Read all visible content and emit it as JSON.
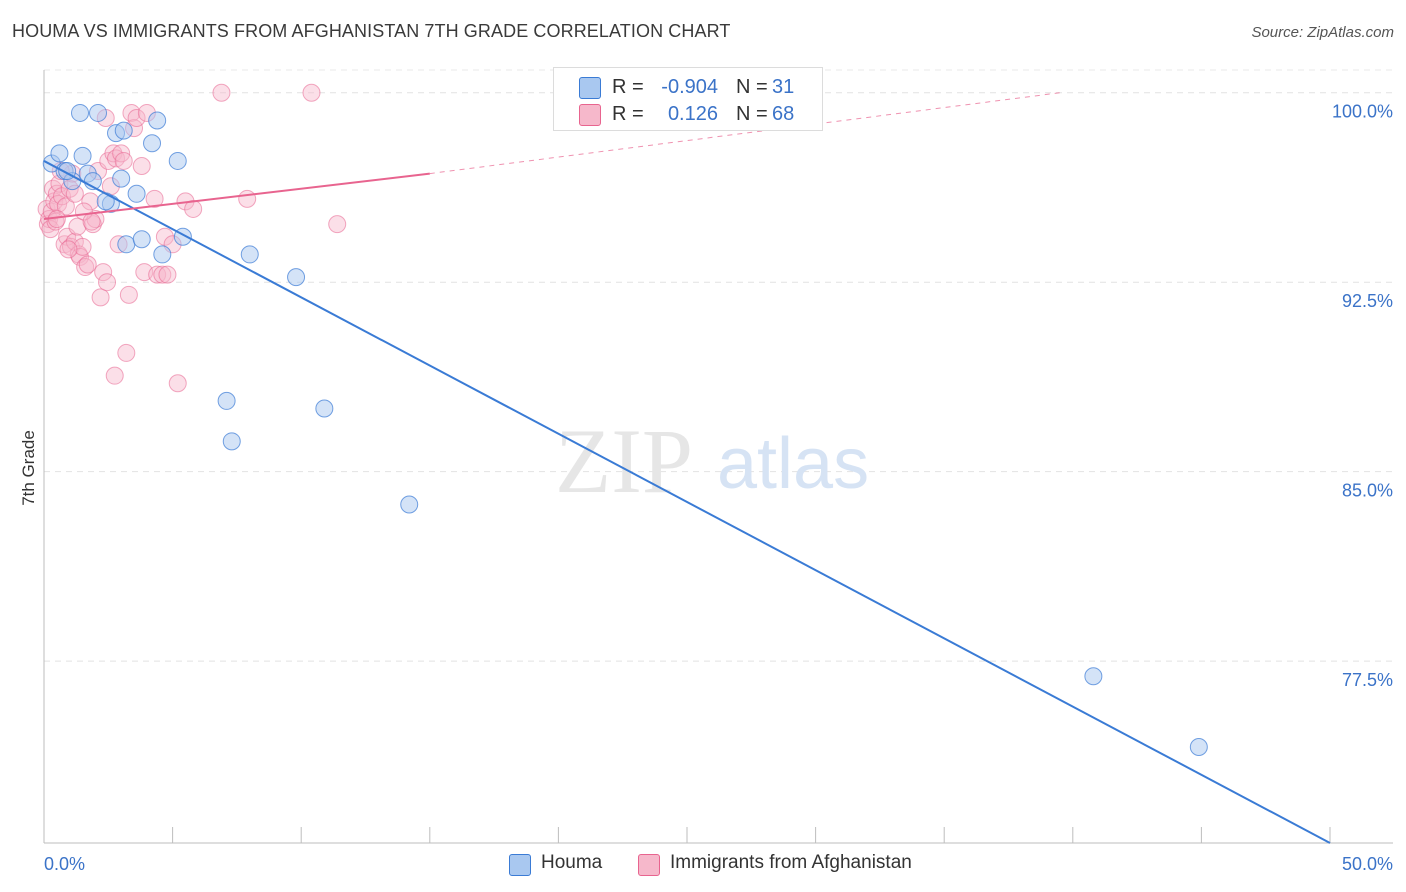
{
  "header": {
    "title": "HOUMA VS IMMIGRANTS FROM AFGHANISTAN 7TH GRADE CORRELATION CHART",
    "source": "Source: ZipAtlas.com"
  },
  "watermark": {
    "zip": "ZIP",
    "atlas": "atlas"
  },
  "legend_stats": {
    "houma": {
      "r_label": "R =",
      "r_value": "-0.904",
      "n_label": "N =",
      "n_value": "31"
    },
    "afghan": {
      "r_label": "R =",
      "r_value": "0.126",
      "n_label": "N =",
      "n_value": "68"
    }
  },
  "chart_data": {
    "type": "scatter",
    "title": "HOUMA VS IMMIGRANTS FROM AFGHANISTAN 7TH GRADE CORRELATION CHART",
    "xlabel": "",
    "ylabel": "7th Grade",
    "xlim": [
      0,
      50
    ],
    "ylim": [
      70.3,
      100.9
    ],
    "x_tick_labels": [
      "0.0%",
      "50.0%"
    ],
    "y_ticks": [
      77.5,
      85.0,
      92.5,
      100.0
    ],
    "y_tick_labels": [
      "77.5%",
      "85.0%",
      "92.5%",
      "100.0%"
    ],
    "grid": true,
    "legend_position": "bottom",
    "colors": {
      "houma": "#3a7bd5",
      "houma_fill": "#a9c8f0",
      "afghan": "#e8648f",
      "afghan_fill": "#f6b8cb"
    },
    "series": [
      {
        "name": "Houma",
        "r": -0.904,
        "n": 31,
        "trend": {
          "x0": 0.0,
          "y0": 97.3,
          "x1": 50.0,
          "y1": 70.3
        },
        "points": [
          [
            0.3,
            97.2
          ],
          [
            0.6,
            97.6
          ],
          [
            0.8,
            96.9
          ],
          [
            1.1,
            96.5
          ],
          [
            1.4,
            99.2
          ],
          [
            1.5,
            97.5
          ],
          [
            1.7,
            96.8
          ],
          [
            1.9,
            96.5
          ],
          [
            2.1,
            99.2
          ],
          [
            2.6,
            95.6
          ],
          [
            2.8,
            98.4
          ],
          [
            3.0,
            96.6
          ],
          [
            3.1,
            98.5
          ],
          [
            3.2,
            94.0
          ],
          [
            3.6,
            96.0
          ],
          [
            3.8,
            94.2
          ],
          [
            4.2,
            98.0
          ],
          [
            4.4,
            98.9
          ],
          [
            4.6,
            93.6
          ],
          [
            5.2,
            97.3
          ],
          [
            5.4,
            94.3
          ],
          [
            7.1,
            87.8
          ],
          [
            7.3,
            86.2
          ],
          [
            8.0,
            93.6
          ],
          [
            9.8,
            92.7
          ],
          [
            10.9,
            87.5
          ],
          [
            14.2,
            83.7
          ],
          [
            40.8,
            76.9
          ],
          [
            44.9,
            74.1
          ],
          [
            0.9,
            96.9
          ],
          [
            2.4,
            95.7
          ]
        ]
      },
      {
        "name": "Immigrants from Afghanistan",
        "r": 0.126,
        "n": 68,
        "trend": {
          "x0": 0.0,
          "y0": 95.0,
          "x1": 15.0,
          "y1": 96.8,
          "dash_to_x": 39.5,
          "dash_to_y": 100.0
        },
        "points": [
          [
            0.1,
            95.4
          ],
          [
            0.15,
            94.8
          ],
          [
            0.2,
            95.0
          ],
          [
            0.25,
            94.6
          ],
          [
            0.3,
            95.3
          ],
          [
            0.35,
            96.2
          ],
          [
            0.4,
            95.7
          ],
          [
            0.45,
            94.9
          ],
          [
            0.5,
            96.0
          ],
          [
            0.55,
            95.6
          ],
          [
            0.6,
            96.4
          ],
          [
            0.7,
            95.9
          ],
          [
            0.8,
            94.0
          ],
          [
            0.85,
            95.5
          ],
          [
            0.9,
            94.3
          ],
          [
            1.0,
            96.2
          ],
          [
            1.05,
            93.9
          ],
          [
            1.1,
            96.8
          ],
          [
            1.2,
            94.1
          ],
          [
            1.3,
            94.7
          ],
          [
            1.35,
            93.6
          ],
          [
            1.4,
            93.5
          ],
          [
            1.5,
            93.9
          ],
          [
            1.6,
            93.1
          ],
          [
            1.7,
            93.2
          ],
          [
            1.8,
            95.7
          ],
          [
            1.9,
            94.8
          ],
          [
            2.0,
            95.0
          ],
          [
            2.1,
            96.9
          ],
          [
            2.2,
            91.9
          ],
          [
            2.3,
            92.9
          ],
          [
            2.4,
            99.0
          ],
          [
            2.45,
            92.5
          ],
          [
            2.5,
            97.3
          ],
          [
            2.6,
            96.3
          ],
          [
            2.7,
            97.6
          ],
          [
            2.8,
            97.4
          ],
          [
            2.9,
            94.0
          ],
          [
            3.0,
            97.6
          ],
          [
            3.1,
            97.3
          ],
          [
            3.2,
            89.7
          ],
          [
            3.3,
            92.0
          ],
          [
            3.4,
            99.2
          ],
          [
            3.5,
            98.6
          ],
          [
            3.6,
            99.0
          ],
          [
            3.8,
            97.1
          ],
          [
            3.9,
            92.9
          ],
          [
            4.0,
            99.2
          ],
          [
            4.3,
            95.8
          ],
          [
            4.4,
            92.8
          ],
          [
            4.6,
            92.8
          ],
          [
            4.7,
            94.3
          ],
          [
            4.8,
            92.8
          ],
          [
            5.0,
            94.0
          ],
          [
            5.2,
            88.5
          ],
          [
            5.5,
            95.7
          ],
          [
            5.8,
            95.4
          ],
          [
            6.9,
            100.0
          ],
          [
            7.9,
            95.8
          ],
          [
            10.4,
            100.0
          ],
          [
            11.4,
            94.8
          ],
          [
            0.5,
            95.0
          ],
          [
            1.2,
            96.0
          ],
          [
            2.75,
            88.8
          ],
          [
            1.55,
            95.3
          ],
          [
            0.95,
            93.8
          ],
          [
            1.85,
            94.9
          ],
          [
            0.65,
            96.9
          ]
        ]
      }
    ]
  },
  "bottom_legend": {
    "houma_label": "Houma",
    "afghan_label": "Immigrants from Afghanistan"
  }
}
